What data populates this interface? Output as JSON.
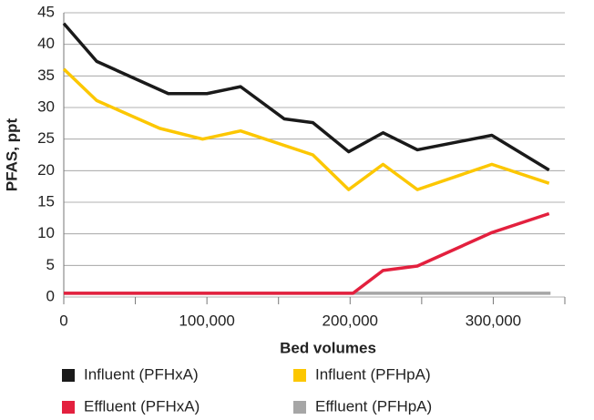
{
  "chart_data": {
    "type": "line",
    "xlabel": "Bed volumes",
    "ylabel": "PFAS, ppt",
    "xlim": [
      0,
      350000
    ],
    "xticks": [
      {
        "value": 0,
        "label": "0"
      },
      {
        "value": 100000,
        "label": "100,000"
      },
      {
        "value": 200000,
        "label": "200,000"
      },
      {
        "value": 300000,
        "label": "300,000"
      }
    ],
    "x_minor_ticks": [
      50000,
      150000,
      250000,
      350000
    ],
    "ylim": [
      0,
      45
    ],
    "yticks": [
      0,
      5,
      10,
      15,
      20,
      25,
      30,
      35,
      40,
      45
    ],
    "grid": true,
    "legend": "bottom",
    "series": [
      {
        "name": "Effluent (PFHpA)",
        "color": "#a6a6a6",
        "x": [
          0,
          200000,
          340000
        ],
        "values": [
          0.6,
          0.6,
          0.6
        ]
      },
      {
        "name": "Effluent (PFHxA)",
        "color": "#e3203e",
        "x": [
          0,
          100000,
          202000,
          223000,
          247000,
          299000,
          339000
        ],
        "values": [
          0.6,
          0.6,
          0.6,
          4.2,
          4.9,
          10.2,
          13.2
        ]
      },
      {
        "name": "Influent (PFHpA)",
        "color": "#fcc700",
        "x": [
          0,
          23000,
          67000,
          97000,
          123500,
          174000,
          199000,
          223000,
          247000,
          299000,
          339000
        ],
        "values": [
          36.1,
          31.1,
          26.7,
          25,
          26.3,
          22.5,
          17,
          21,
          17,
          21,
          18
        ]
      },
      {
        "name": "Influent (PFHxA)",
        "color": "#1a1a1a",
        "x": [
          0,
          23000,
          73000,
          100000,
          123500,
          154000,
          174000,
          199000,
          223000,
          247000,
          299000,
          339000
        ],
        "values": [
          43.3,
          37.3,
          32.2,
          32.2,
          33.3,
          28.2,
          27.6,
          23,
          26,
          23.3,
          25.6,
          20.1
        ]
      }
    ]
  }
}
